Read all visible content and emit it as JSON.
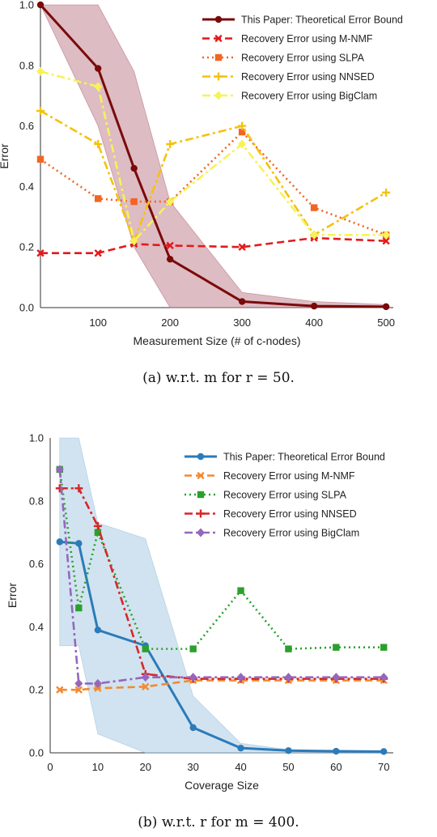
{
  "chart_data": [
    {
      "type": "line",
      "caption": "(a) w.r.t. m for r = 50.",
      "xlabel": "Measurement Size (# of c-nodes)",
      "ylabel": "Error",
      "xlim": [
        20,
        510
      ],
      "ylim": [
        0,
        1
      ],
      "xticks": [
        100,
        200,
        300,
        400,
        500
      ],
      "yticks": [
        0.0,
        0.2,
        0.4,
        0.6,
        0.8,
        1.0
      ],
      "grid": false,
      "legend": "top-right",
      "band": {
        "color": "#b36b7a",
        "x": [
          20,
          100,
          150,
          200,
          300,
          400,
          500
        ],
        "upper": [
          1.0,
          1.0,
          0.78,
          0.35,
          0.05,
          0.02,
          0.01
        ],
        "lower": [
          1.0,
          0.6,
          0.2,
          0.0,
          0.0,
          0.0,
          0.0
        ]
      },
      "series": [
        {
          "name": "This Paper: Theoretical Error Bound",
          "color": "#7a0a0a",
          "dash": "",
          "marker": "circle",
          "x": [
            20,
            100,
            150,
            200,
            300,
            400,
            500
          ],
          "y": [
            1.0,
            0.79,
            0.46,
            0.16,
            0.02,
            0.005,
            0.003
          ]
        },
        {
          "name": "Recovery Error using M-NMF",
          "color": "#e31a1c",
          "dash": "9,5",
          "marker": "x",
          "x": [
            20,
            100,
            150,
            200,
            300,
            400,
            500
          ],
          "y": [
            0.18,
            0.18,
            0.21,
            0.205,
            0.2,
            0.23,
            0.22
          ]
        },
        {
          "name": "Recovery Error using SLPA",
          "color": "#f26522",
          "dash": "2,4",
          "marker": "square",
          "x": [
            20,
            100,
            150,
            200,
            300,
            400,
            500
          ],
          "y": [
            0.49,
            0.36,
            0.35,
            0.35,
            0.58,
            0.33,
            0.24
          ]
        },
        {
          "name": "Recovery Error using NNSED",
          "color": "#f4c20d",
          "dash": "10,4,3,4",
          "marker": "plus",
          "x": [
            20,
            100,
            150,
            200,
            300,
            400,
            500
          ],
          "y": [
            0.65,
            0.54,
            0.22,
            0.54,
            0.6,
            0.24,
            0.38
          ]
        },
        {
          "name": "Recovery Error using BigClam",
          "color": "#f7f257",
          "dash": "10,4,3,4",
          "marker": "diamond",
          "x": [
            20,
            100,
            150,
            200,
            300,
            400,
            500
          ],
          "y": [
            0.78,
            0.73,
            0.22,
            0.35,
            0.54,
            0.24,
            0.24
          ]
        }
      ]
    },
    {
      "type": "line",
      "caption": "(b) w.r.t. r for m = 400.",
      "xlabel": "Coverage Size",
      "ylabel": "Error",
      "xlim": [
        0,
        72
      ],
      "ylim": [
        0,
        1
      ],
      "xticks": [
        0,
        10,
        20,
        30,
        40,
        50,
        60,
        70
      ],
      "yticks": [
        0.0,
        0.2,
        0.4,
        0.6,
        0.8,
        1.0
      ],
      "grid": false,
      "legend": "top-right",
      "band": {
        "color": "#9ac0de",
        "x": [
          2,
          6,
          10,
          20,
          30,
          40,
          50,
          60,
          70
        ],
        "upper": [
          1.0,
          1.0,
          0.73,
          0.68,
          0.18,
          0.03,
          0.01,
          0.005,
          0.005
        ],
        "lower": [
          0.34,
          0.34,
          0.06,
          0.0,
          0.0,
          0.0,
          0.0,
          0.0,
          0.0
        ]
      },
      "series": [
        {
          "name": "This Paper: Theoretical Error Bound",
          "color": "#2b7bba",
          "dash": "",
          "marker": "circle",
          "x": [
            2,
            6,
            10,
            20,
            30,
            40,
            50,
            60,
            70
          ],
          "y": [
            0.67,
            0.665,
            0.39,
            0.34,
            0.08,
            0.015,
            0.007,
            0.005,
            0.004
          ]
        },
        {
          "name": "Recovery Error using M-NMF",
          "color": "#f28a30",
          "dash": "9,5",
          "marker": "x",
          "x": [
            2,
            6,
            10,
            20,
            30,
            40,
            50,
            60,
            70
          ],
          "y": [
            0.2,
            0.2,
            0.205,
            0.21,
            0.23,
            0.23,
            0.23,
            0.23,
            0.23
          ]
        },
        {
          "name": "Recovery Error using SLPA",
          "color": "#2ca02c",
          "dash": "2,4",
          "marker": "square",
          "x": [
            2,
            6,
            10,
            20,
            30,
            40,
            50,
            60,
            70
          ],
          "y": [
            0.9,
            0.46,
            0.7,
            0.33,
            0.33,
            0.515,
            0.33,
            0.335,
            0.335
          ]
        },
        {
          "name": "Recovery Error using NNSED",
          "color": "#d62728",
          "dash": "10,4,3,4",
          "marker": "plus",
          "x": [
            2,
            6,
            10,
            20,
            30,
            40,
            50,
            60,
            70
          ],
          "y": [
            0.84,
            0.84,
            0.72,
            0.25,
            0.235,
            0.235,
            0.235,
            0.235,
            0.235
          ]
        },
        {
          "name": "Recovery Error using BigClam",
          "color": "#9467bd",
          "dash": "10,4,3,4",
          "marker": "diamond",
          "x": [
            2,
            6,
            10,
            20,
            30,
            40,
            50,
            60,
            70
          ],
          "y": [
            0.9,
            0.22,
            0.22,
            0.24,
            0.24,
            0.24,
            0.24,
            0.24,
            0.24
          ]
        }
      ]
    }
  ]
}
